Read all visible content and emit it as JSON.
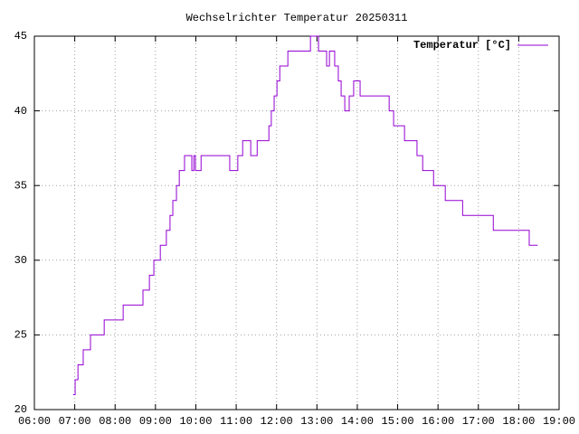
{
  "chart_data": {
    "type": "line",
    "title": "Wechselrichter Temperatur 20250311",
    "x": [
      6.96,
      7.01,
      7.01,
      7.08,
      7.08,
      7.21,
      7.21,
      7.39,
      7.39,
      7.73,
      7.73,
      8.2,
      8.2,
      8.69,
      8.69,
      8.85,
      8.85,
      8.96,
      8.96,
      9.12,
      9.12,
      9.27,
      9.27,
      9.36,
      9.36,
      9.43,
      9.43,
      9.52,
      9.52,
      9.59,
      9.59,
      9.72,
      9.72,
      9.9,
      9.9,
      9.95,
      9.95,
      9.99,
      9.99,
      10.13,
      10.13,
      10.84,
      10.84,
      11.04,
      11.04,
      11.16,
      11.16,
      11.36,
      11.36,
      11.52,
      11.52,
      11.81,
      11.81,
      11.87,
      11.87,
      11.94,
      11.94,
      12.01,
      12.01,
      12.08,
      12.08,
      12.14,
      12.28,
      12.28,
      12.84,
      12.84,
      13.04,
      13.04,
      13.24,
      13.24,
      13.31,
      13.31,
      13.44,
      13.44,
      13.53,
      13.53,
      13.6,
      13.6,
      13.69,
      13.69,
      13.8,
      13.8,
      13.91,
      13.91,
      14.07,
      14.07,
      14.79,
      14.79,
      14.9,
      14.9,
      15.17,
      15.17,
      15.48,
      15.48,
      15.62,
      15.62,
      15.89,
      15.89,
      16.18,
      16.18,
      16.61,
      16.61,
      17.37,
      17.37,
      18.26,
      18.26,
      18.47
    ],
    "series": [
      {
        "name": "Temperatur [°C]",
        "color": "#9400d3",
        "values": [
          21,
          21,
          22,
          22,
          23,
          23,
          24,
          24,
          25,
          25,
          26,
          26,
          27,
          27,
          28,
          28,
          29,
          29,
          30,
          30,
          31,
          31,
          32,
          32,
          33,
          33,
          34,
          34,
          35,
          35,
          36,
          36,
          37,
          37,
          36,
          36,
          37,
          37,
          36,
          36,
          37,
          37,
          36,
          36,
          37,
          37,
          38,
          38,
          37,
          37,
          38,
          38,
          39,
          39,
          40,
          40,
          41,
          41,
          42,
          42,
          43,
          43,
          43,
          44,
          44,
          45,
          45,
          44,
          44,
          43,
          43,
          44,
          44,
          43,
          43,
          42,
          42,
          41,
          41,
          40,
          40,
          41,
          41,
          42,
          42,
          41,
          41,
          40,
          40,
          39,
          39,
          38,
          38,
          37,
          37,
          36,
          36,
          35,
          35,
          34,
          34,
          33,
          33,
          32,
          32,
          31,
          31
        ]
      }
    ],
    "xlim": [
      6,
      19
    ],
    "xticks": [
      {
        "value": 6,
        "label": "06:00"
      },
      {
        "value": 7,
        "label": "07:00"
      },
      {
        "value": 8,
        "label": "08:00"
      },
      {
        "value": 9,
        "label": "09:00"
      },
      {
        "value": 10,
        "label": "10:00"
      },
      {
        "value": 11,
        "label": "11:00"
      },
      {
        "value": 12,
        "label": "12:00"
      },
      {
        "value": 13,
        "label": "13:00"
      },
      {
        "value": 14,
        "label": "14:00"
      },
      {
        "value": 15,
        "label": "15:00"
      },
      {
        "value": 16,
        "label": "16:00"
      },
      {
        "value": 17,
        "label": "17:00"
      },
      {
        "value": 18,
        "label": "18:00"
      },
      {
        "value": 19,
        "label": "19:00"
      }
    ],
    "ylim": [
      20,
      45
    ],
    "yticks": [
      20,
      25,
      30,
      35,
      40,
      45
    ],
    "grid": true,
    "legend": "top-right"
  }
}
